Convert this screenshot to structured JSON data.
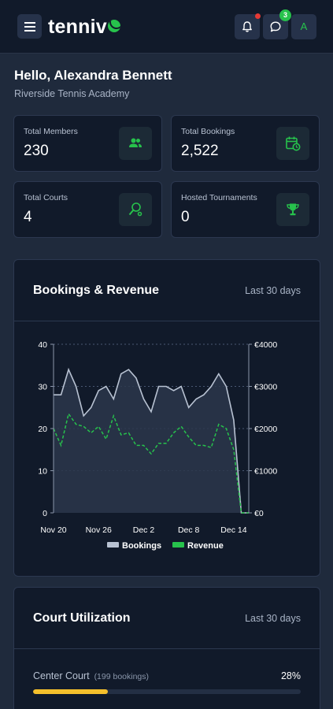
{
  "app": {
    "brand_text": "tenniv",
    "notifications_has_alert": true,
    "messages_count": "3",
    "avatar_initial": "A"
  },
  "colors": {
    "accent_green": "#27c24c",
    "alert_red": "#e53935",
    "bookings_line": "#b8c2d2",
    "utilization_bar": "#f5c02c"
  },
  "greeting": {
    "title": "Hello, Alexandra Bennett",
    "subtitle": "Riverside Tennis Academy"
  },
  "stats": [
    {
      "label": "Total Members",
      "value": "230",
      "icon": "members-icon"
    },
    {
      "label": "Total Bookings",
      "value": "2,522",
      "icon": "calendar-clock-icon"
    },
    {
      "label": "Total Courts",
      "value": "4",
      "icon": "tennis-racket-icon"
    },
    {
      "label": "Hosted Tournaments",
      "value": "0",
      "icon": "trophy-icon"
    }
  ],
  "bookings_card": {
    "title": "Bookings & Revenue",
    "range": "Last 30 days"
  },
  "chart_data": {
    "type": "line",
    "x_tick_labels": [
      "Nov 20",
      "Nov 26",
      "Dec 2",
      "Dec 8",
      "Dec 14"
    ],
    "left_axis": {
      "ticks": [
        "0",
        "10",
        "20",
        "30",
        "40"
      ],
      "ylim": [
        0,
        40
      ]
    },
    "right_axis": {
      "ticks": [
        "€0",
        "€1000",
        "€2000",
        "€3000",
        "€4000"
      ],
      "ylim": [
        0,
        4000
      ]
    },
    "grid": true,
    "legend_position": "bottom",
    "series": [
      {
        "name": "Bookings",
        "axis": "left",
        "style": "solid-area",
        "color": "#b8c2d2",
        "values": [
          28,
          28,
          34,
          30,
          23,
          25,
          29,
          30,
          27,
          33,
          34,
          32,
          27,
          24,
          30,
          30,
          29,
          30,
          25,
          27,
          28,
          30,
          33,
          30,
          22,
          0,
          0
        ]
      },
      {
        "name": "Revenue",
        "axis": "right",
        "style": "dashed",
        "color": "#27c24c",
        "values": [
          2000,
          1600,
          2350,
          2100,
          2050,
          1900,
          2050,
          1750,
          2300,
          1850,
          1900,
          1600,
          1600,
          1400,
          1650,
          1650,
          1900,
          2050,
          1800,
          1600,
          1600,
          1550,
          2100,
          2000,
          1500,
          0,
          0
        ]
      }
    ]
  },
  "utilization_card": {
    "title": "Court Utilization",
    "range": "Last 30 days",
    "courts": [
      {
        "name": "Center Court",
        "bookings": "(199 bookings)",
        "percent_label": "28%",
        "fraction": 0.28
      }
    ]
  }
}
